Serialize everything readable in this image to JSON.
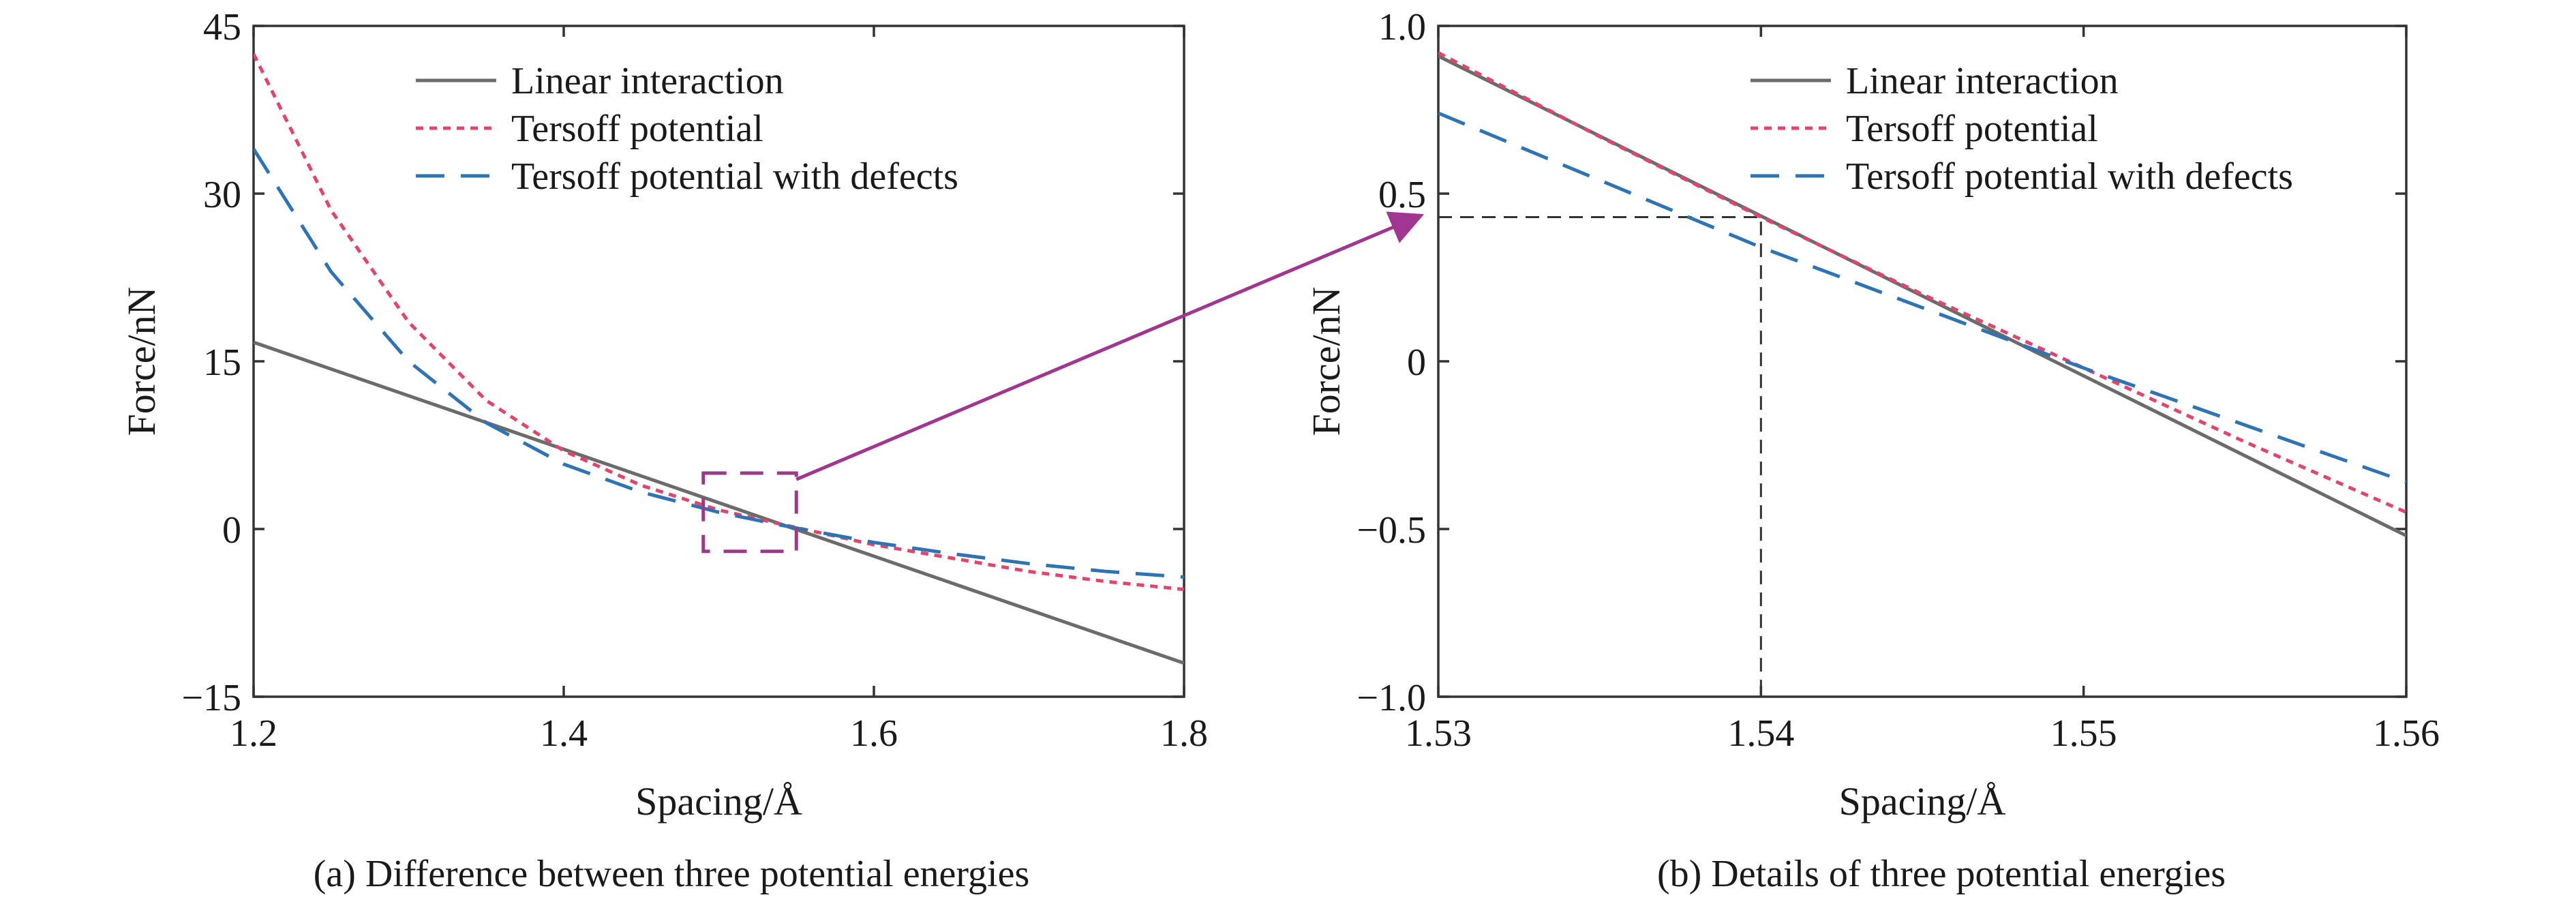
{
  "captions": {
    "a": "(a) Difference between three potential energies",
    "b": "(b) Details of three potential energies"
  },
  "colors": {
    "linear": "#6b6b6b",
    "tersoff": "#e0466c",
    "tersoff_defects": "#2f73b3",
    "zoom_box": "#9c3a88",
    "arrow": "#a0368f",
    "guide": "#333333",
    "axes": "#333333"
  },
  "chart_data": [
    {
      "type": "line",
      "panel": "a",
      "xlabel": "Spacing/Å",
      "ylabel": "Force/nN",
      "xlim": [
        1.2,
        1.8
      ],
      "ylim": [
        -15,
        45
      ],
      "xticks": [
        1.2,
        1.4,
        1.6,
        1.8
      ],
      "xtick_labels": [
        "1.2",
        "1.4",
        "1.6",
        "1.8"
      ],
      "yticks": [
        -15,
        0,
        15,
        30,
        45
      ],
      "ytick_labels": [
        "−15",
        "0",
        "15",
        "30",
        "45"
      ],
      "grid": false,
      "legend_position": "top-right",
      "series": [
        {
          "name": "Linear interaction",
          "style": "solid",
          "color_key": "linear",
          "x": [
            1.2,
            1.8
          ],
          "y": [
            16.7,
            -12.0
          ]
        },
        {
          "name": "Tersoff potential",
          "style": "dotted",
          "color_key": "tersoff",
          "x": [
            1.2,
            1.25,
            1.3,
            1.35,
            1.4,
            1.45,
            1.5,
            1.54,
            1.6,
            1.65,
            1.7,
            1.75,
            1.8
          ],
          "y": [
            42.5,
            28.5,
            18.5,
            11.5,
            7.0,
            3.9,
            1.7,
            0.43,
            -1.4,
            -2.6,
            -3.8,
            -4.7,
            -5.4
          ]
        },
        {
          "name": "Tersoff potential with defects",
          "style": "dashed",
          "color_key": "tersoff_defects",
          "x": [
            1.2,
            1.25,
            1.3,
            1.35,
            1.4,
            1.45,
            1.5,
            1.54,
            1.6,
            1.65,
            1.7,
            1.75,
            1.8
          ],
          "y": [
            34.0,
            23.0,
            15.0,
            9.5,
            5.8,
            3.3,
            1.5,
            0.35,
            -1.2,
            -2.2,
            -3.1,
            -3.8,
            -4.3
          ]
        }
      ],
      "zoom_box": {
        "x": [
          1.49,
          1.55
        ],
        "y": [
          -2.0,
          5.0
        ]
      }
    },
    {
      "type": "line",
      "panel": "b",
      "xlabel": "Spacing/Å",
      "ylabel": "Force/nN",
      "xlim": [
        1.53,
        1.56
      ],
      "ylim": [
        -1.0,
        1.0
      ],
      "xticks": [
        1.53,
        1.54,
        1.55,
        1.56
      ],
      "xtick_labels": [
        "1.53",
        "1.54",
        "1.55",
        "1.56"
      ],
      "yticks": [
        -1.0,
        -0.5,
        0,
        0.5,
        1.0
      ],
      "ytick_labels": [
        "−1.0",
        "−0.5",
        "0",
        "0.5",
        "1.0"
      ],
      "grid": false,
      "legend_position": "top-right",
      "series": [
        {
          "name": "Linear interaction",
          "style": "solid",
          "color_key": "linear",
          "x": [
            1.53,
            1.56
          ],
          "y": [
            0.91,
            -0.52
          ]
        },
        {
          "name": "Tersoff potential",
          "style": "dotted",
          "color_key": "tersoff",
          "x": [
            1.53,
            1.535,
            1.54,
            1.545,
            1.55,
            1.555,
            1.56
          ],
          "y": [
            0.92,
            0.67,
            0.43,
            0.2,
            -0.02,
            -0.24,
            -0.45
          ]
        },
        {
          "name": "Tersoff potential with defects",
          "style": "dashed",
          "color_key": "tersoff_defects",
          "x": [
            1.53,
            1.535,
            1.54,
            1.545,
            1.55,
            1.555,
            1.56
          ],
          "y": [
            0.74,
            0.54,
            0.34,
            0.16,
            -0.02,
            -0.19,
            -0.36
          ]
        }
      ],
      "guide_point": {
        "x": 1.54,
        "y": 0.43
      }
    }
  ]
}
